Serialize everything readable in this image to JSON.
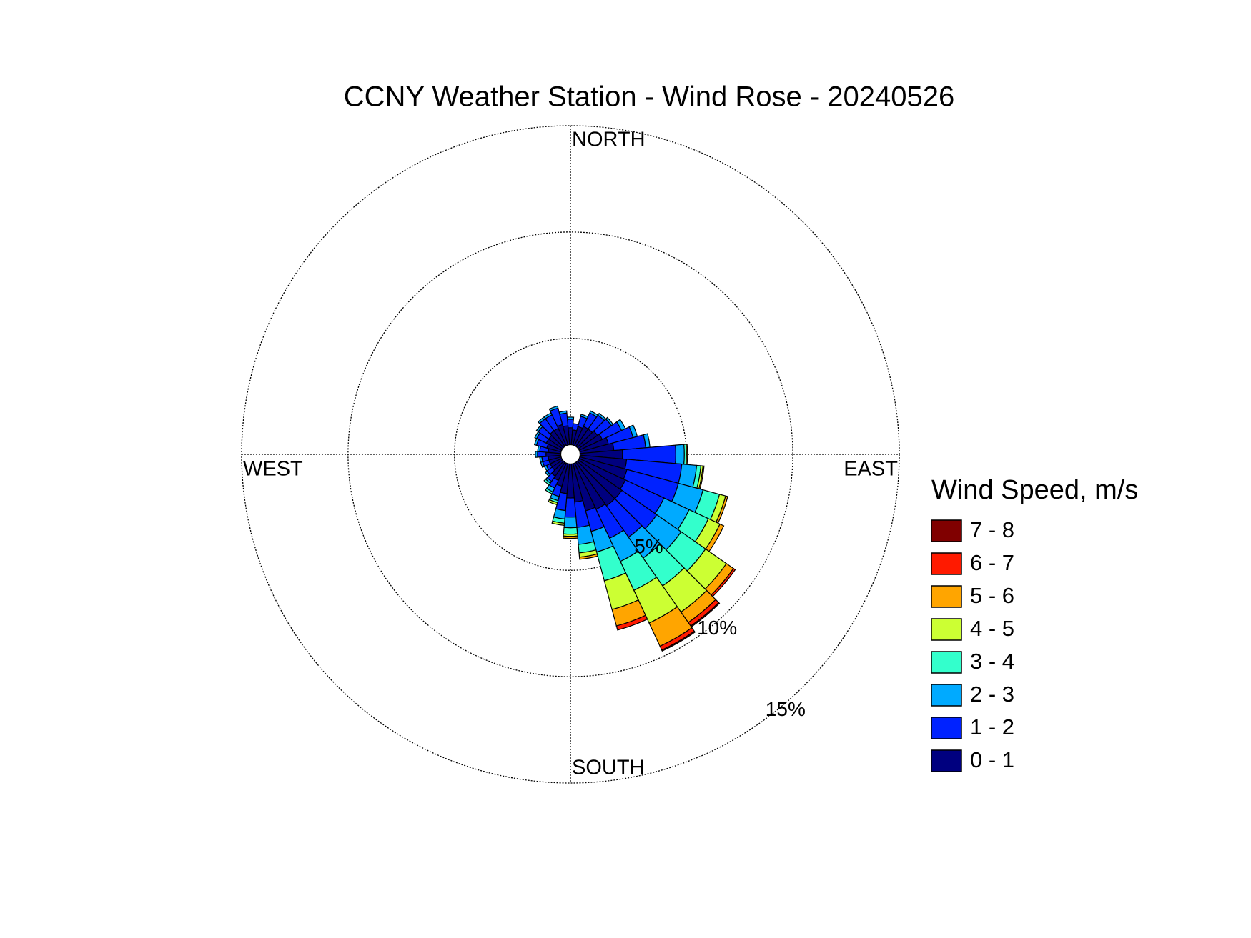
{
  "chart_data": {
    "type": "windrose",
    "title": "CCNY Weather Station - Wind Rose - 20240526",
    "direction_labels": [
      "NORTH",
      "EAST",
      "SOUTH",
      "WEST"
    ],
    "legend_title": "Wind Speed, m/s",
    "x": [
      0,
      10,
      20,
      30,
      40,
      50,
      60,
      70,
      80,
      90,
      100,
      110,
      120,
      130,
      140,
      150,
      160,
      170,
      180,
      190,
      200,
      210,
      220,
      230,
      240,
      250,
      260,
      270,
      280,
      290,
      300,
      310,
      320,
      330,
      340,
      350
    ],
    "rlim": [
      0,
      15
    ],
    "rticks": [
      {
        "value": 5,
        "label": "5%"
      },
      {
        "value": 10,
        "label": "10%"
      },
      {
        "value": 15,
        "label": "15%"
      }
    ],
    "grid": true,
    "series": [
      {
        "name": "0 - 1",
        "color": "#00007f",
        "values": [
          0.8,
          0.7,
          0.9,
          1.0,
          1.0,
          1.1,
          1.2,
          1.4,
          1.6,
          2.0,
          2.2,
          2.3,
          2.4,
          2.5,
          2.5,
          2.4,
          2.3,
          1.8,
          1.6,
          1.4,
          1.1,
          0.9,
          0.8,
          0.6,
          0.6,
          0.6,
          0.6,
          0.7,
          0.6,
          0.7,
          0.8,
          0.8,
          0.9,
          0.9,
          1.0,
          0.9
        ]
      },
      {
        "name": "1 - 2",
        "color": "#0022ff",
        "values": [
          0.4,
          0.3,
          0.5,
          0.7,
          0.8,
          0.8,
          1.0,
          1.2,
          1.5,
          2.5,
          2.6,
          2.5,
          2.0,
          2.0,
          1.8,
          1.5,
          1.0,
          1.2,
          0.9,
          0.8,
          0.5,
          0.4,
          0.3,
          0.3,
          0.2,
          0.3,
          0.3,
          0.4,
          0.4,
          0.5,
          0.5,
          0.6,
          0.7,
          0.7,
          0.8,
          0.6
        ]
      },
      {
        "name": "2 - 3",
        "color": "#00aaff",
        "values": [
          0.1,
          0,
          0.1,
          0.1,
          0.1,
          0.1,
          0.2,
          0.2,
          0.2,
          0.4,
          0.7,
          1.2,
          1.3,
          1.4,
          1.2,
          1.2,
          1.0,
          0.8,
          0.5,
          0.4,
          0.2,
          0.2,
          0.1,
          0.1,
          0.1,
          0.1,
          0.1,
          0.1,
          0.1,
          0.1,
          0.1,
          0.1,
          0.1,
          0.1,
          0.1,
          0.1
        ]
      },
      {
        "name": "3 - 4",
        "color": "#33ffcc",
        "values": [
          0,
          0,
          0,
          0,
          0,
          0,
          0,
          0,
          0,
          0.1,
          0.2,
          0.8,
          1.0,
          1.4,
          1.6,
          1.5,
          1.4,
          0.4,
          0.3,
          0.2,
          0.1,
          0.1,
          0.1,
          0,
          0,
          0,
          0,
          0,
          0,
          0,
          0,
          0,
          0,
          0,
          0,
          0
        ]
      },
      {
        "name": "4 - 5",
        "color": "#ccff33",
        "values": [
          0,
          0,
          0,
          0,
          0,
          0,
          0,
          0,
          0,
          0,
          0.1,
          0.3,
          0.6,
          1.2,
          1.5,
          1.7,
          1.4,
          0.2,
          0.1,
          0.1,
          0.1,
          0,
          0,
          0,
          0,
          0,
          0,
          0,
          0,
          0,
          0,
          0,
          0,
          0,
          0,
          0
        ]
      },
      {
        "name": "5 - 6",
        "color": "#ffa500",
        "values": [
          0,
          0,
          0,
          0,
          0,
          0,
          0,
          0,
          0,
          0.05,
          0.05,
          0.1,
          0.2,
          0.4,
          0.6,
          1.2,
          0.8,
          0.1,
          0.1,
          0,
          0,
          0,
          0,
          0,
          0,
          0,
          0,
          0,
          0,
          0,
          0,
          0,
          0,
          0,
          0,
          0
        ]
      },
      {
        "name": "6 - 7",
        "color": "#ff1a00",
        "values": [
          0,
          0,
          0,
          0,
          0,
          0,
          0,
          0,
          0,
          0,
          0,
          0,
          0,
          0.1,
          0.2,
          0.2,
          0.2,
          0,
          0,
          0,
          0,
          0,
          0,
          0,
          0,
          0,
          0,
          0,
          0,
          0,
          0,
          0,
          0,
          0,
          0,
          0
        ]
      },
      {
        "name": "7 - 8",
        "color": "#800000",
        "values": [
          0,
          0,
          0,
          0,
          0,
          0,
          0,
          0,
          0,
          0,
          0,
          0,
          0,
          0,
          0.05,
          0.05,
          0,
          0,
          0,
          0,
          0,
          0,
          0,
          0,
          0,
          0,
          0,
          0,
          0,
          0,
          0,
          0,
          0,
          0,
          0,
          0
        ]
      }
    ]
  }
}
